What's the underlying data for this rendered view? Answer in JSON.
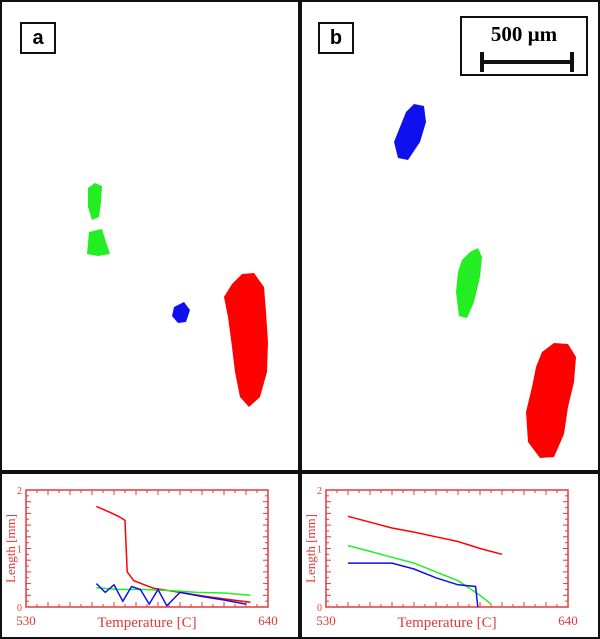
{
  "panels": [
    {
      "label": "a"
    },
    {
      "label": "b",
      "scale_bar": "500 µm"
    }
  ],
  "colors": {
    "red": "#ff0000",
    "green": "#22ee22",
    "blue": "#1010ee",
    "axis": "#e23a3a"
  },
  "chart_data": [
    {
      "type": "line",
      "xlabel": "Temperature [C]",
      "ylabel": "Length [mm]",
      "xlim": [
        530,
        640
      ],
      "ylim": [
        0,
        2
      ],
      "x_tick_labels": [
        "530",
        "640"
      ],
      "y_tick_labels": [
        "0",
        "1",
        "2"
      ],
      "series": [
        {
          "color": "red",
          "x": [
            562,
            568,
            572,
            575,
            576,
            579,
            588,
            600,
            612,
            624,
            632
          ],
          "y": [
            1.72,
            1.62,
            1.55,
            1.48,
            0.6,
            0.45,
            0.32,
            0.25,
            0.18,
            0.12,
            0.08
          ]
        },
        {
          "color": "green",
          "x": [
            562,
            572,
            584,
            596,
            608,
            620,
            632
          ],
          "y": [
            0.33,
            0.3,
            0.3,
            0.28,
            0.25,
            0.24,
            0.2
          ]
        },
        {
          "color": "blue",
          "x": [
            562,
            566,
            570,
            574,
            578,
            582,
            586,
            590,
            594,
            600,
            610,
            620,
            630
          ],
          "y": [
            0.4,
            0.25,
            0.38,
            0.1,
            0.35,
            0.3,
            0.05,
            0.3,
            0.02,
            0.25,
            0.18,
            0.12,
            0.05
          ]
        }
      ]
    },
    {
      "type": "line",
      "xlabel": "Temperature [C]",
      "ylabel": "Length [mm]",
      "xlim": [
        530,
        640
      ],
      "ylim": [
        0,
        2
      ],
      "x_tick_labels": [
        "530",
        "640"
      ],
      "y_tick_labels": [
        "0",
        "1",
        "2"
      ],
      "series": [
        {
          "color": "red",
          "x": [
            540,
            550,
            560,
            570,
            580,
            590,
            600,
            610
          ],
          "y": [
            1.55,
            1.45,
            1.35,
            1.28,
            1.2,
            1.12,
            1.0,
            0.9
          ]
        },
        {
          "color": "green",
          "x": [
            540,
            550,
            560,
            570,
            580,
            590,
            600,
            605
          ],
          "y": [
            1.05,
            0.95,
            0.85,
            0.75,
            0.6,
            0.45,
            0.2,
            0.05
          ]
        },
        {
          "color": "blue",
          "x": [
            540,
            560,
            570,
            580,
            590,
            598,
            599
          ],
          "y": [
            0.75,
            0.75,
            0.65,
            0.5,
            0.38,
            0.35,
            0.0
          ]
        }
      ]
    }
  ]
}
